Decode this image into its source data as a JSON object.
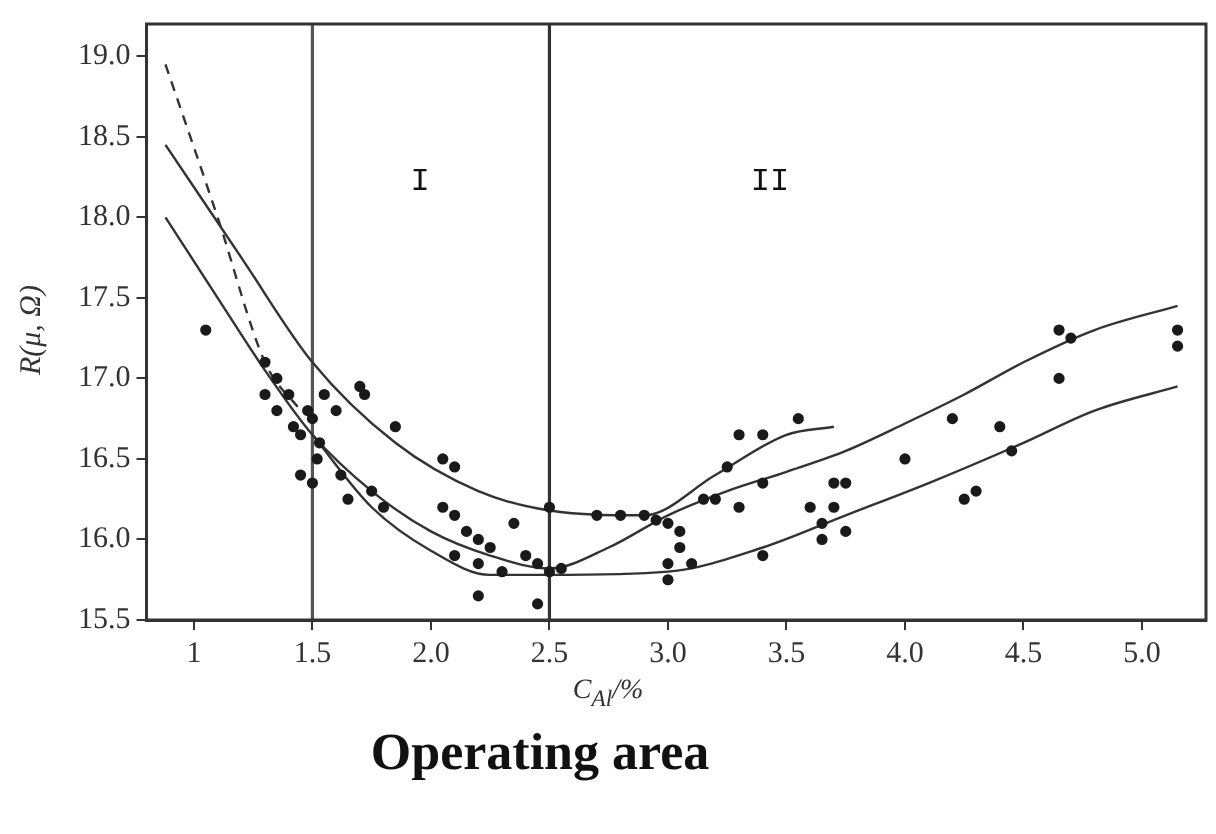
{
  "chart_data": {
    "type": "scatter",
    "xlabel": "C$_{Al}$/%",
    "ylabel": "R(μ, Ω)",
    "xlim": [
      0.8,
      5.27
    ],
    "ylim": [
      15.5,
      19.2
    ],
    "xticks": [
      1,
      1.5,
      {
        "value": 2,
        "label": "2.0"
      },
      2.5,
      {
        "value": 3,
        "label": "3.0"
      },
      3.5,
      {
        "value": 4,
        "label": "4.0"
      },
      4.5,
      {
        "value": 5,
        "label": "5.0"
      }
    ],
    "yticks": [
      15.5,
      {
        "value": 16,
        "label": "16.0"
      },
      16.5,
      {
        "value": 17,
        "label": "17.0"
      },
      17.5,
      {
        "value": 18,
        "label": "18.0"
      },
      18.5,
      {
        "value": 19,
        "label": "19.0"
      }
    ],
    "grid": false,
    "legend": false,
    "series": [
      {
        "color": "#1a1a1a",
        "marker": "circle",
        "x": [
          1.05,
          1.3,
          1.35,
          1.3,
          1.35,
          1.4,
          1.42,
          1.45,
          1.48,
          1.5,
          1.45,
          1.5,
          1.52,
          1.53,
          1.55,
          1.6,
          1.62,
          1.65,
          1.7,
          1.72,
          1.75,
          1.8,
          1.85,
          2.05,
          2.1,
          2.05,
          2.1,
          2.1,
          2.15,
          2.2,
          2.2,
          2.25,
          2.3,
          2.2,
          2.35,
          2.4,
          2.45,
          2.45,
          2.5,
          2.5,
          2.55,
          2.7,
          2.8,
          2.9,
          2.95,
          3.0,
          3.0,
          3.0,
          3.05,
          3.05,
          3.1,
          3.15,
          3.2,
          3.25,
          3.3,
          3.3,
          3.4,
          3.4,
          3.4,
          3.55,
          3.6,
          3.65,
          3.65,
          3.7,
          3.7,
          3.75,
          3.75,
          4.0,
          4.2,
          4.25,
          4.3,
          4.4,
          4.45,
          4.65,
          4.65,
          4.7,
          5.15,
          5.15
        ],
        "values": [
          17.3,
          17.1,
          17.0,
          16.9,
          16.8,
          16.9,
          16.7,
          16.65,
          16.8,
          16.75,
          16.4,
          16.35,
          16.5,
          16.6,
          16.9,
          16.8,
          16.4,
          16.25,
          16.95,
          16.9,
          16.3,
          16.2,
          16.7,
          16.5,
          16.45,
          16.2,
          16.15,
          15.9,
          16.05,
          16.0,
          15.85,
          15.95,
          15.8,
          15.65,
          16.1,
          15.9,
          15.85,
          15.6,
          15.8,
          16.2,
          15.82,
          16.15,
          16.15,
          16.15,
          16.12,
          16.1,
          15.85,
          15.75,
          16.05,
          15.95,
          15.85,
          16.25,
          16.25,
          16.45,
          16.65,
          16.2,
          16.35,
          16.65,
          15.9,
          16.75,
          16.2,
          16.1,
          16.0,
          16.35,
          16.2,
          16.05,
          16.35,
          16.5,
          16.75,
          16.25,
          16.3,
          16.7,
          16.55,
          17.0,
          17.3,
          17.25,
          17.3,
          17.2
        ]
      },
      {
        "type": "line",
        "color": "#333333",
        "marker": "none",
        "line_style": "solid",
        "x": [
          0.88,
          1.2,
          1.5,
          1.85,
          2.2,
          2.5,
          2.9,
          3.2,
          3.5,
          3.7
        ],
        "values": [
          18.45,
          17.75,
          17.1,
          16.6,
          16.3,
          16.18,
          16.15,
          16.4,
          16.65,
          16.7
        ]
      },
      {
        "type": "line",
        "color": "#333333",
        "marker": "none",
        "line_style": "dashed",
        "x": [
          0.88,
          1.1,
          1.3,
          1.45
        ],
        "values": [
          18.95,
          18.0,
          17.1,
          16.8
        ]
      },
      {
        "type": "line",
        "color": "#333333",
        "marker": "none",
        "line_style": "solid",
        "x": [
          0.88,
          1.1,
          1.3,
          1.5,
          1.75,
          2.0,
          2.25,
          2.5,
          2.75,
          3.0,
          3.25,
          3.5,
          3.75,
          4.0,
          4.25,
          4.5,
          4.8,
          5.15
        ],
        "values": [
          18.0,
          17.5,
          17.05,
          16.65,
          16.3,
          16.05,
          15.9,
          15.82,
          15.95,
          16.15,
          16.3,
          16.42,
          16.55,
          16.72,
          16.9,
          17.1,
          17.3,
          17.45
        ]
      },
      {
        "type": "line",
        "color": "#333333",
        "marker": "none",
        "line_style": "solid",
        "x": [
          1.5,
          1.75,
          2.0,
          2.25,
          2.5,
          3.0,
          3.4,
          3.75,
          4.1,
          4.5,
          4.8,
          5.15
        ],
        "values": [
          16.65,
          16.2,
          15.93,
          15.78,
          15.78,
          15.8,
          15.95,
          16.15,
          16.35,
          16.6,
          16.8,
          16.95
        ]
      }
    ],
    "ref_lines": [
      {
        "axis": "x",
        "value": 1.5,
        "color": "#555555"
      },
      {
        "axis": "x",
        "value": 2.5,
        "color": "#333333"
      }
    ],
    "annotations": [
      "I",
      "II",
      "Operating area"
    ]
  }
}
